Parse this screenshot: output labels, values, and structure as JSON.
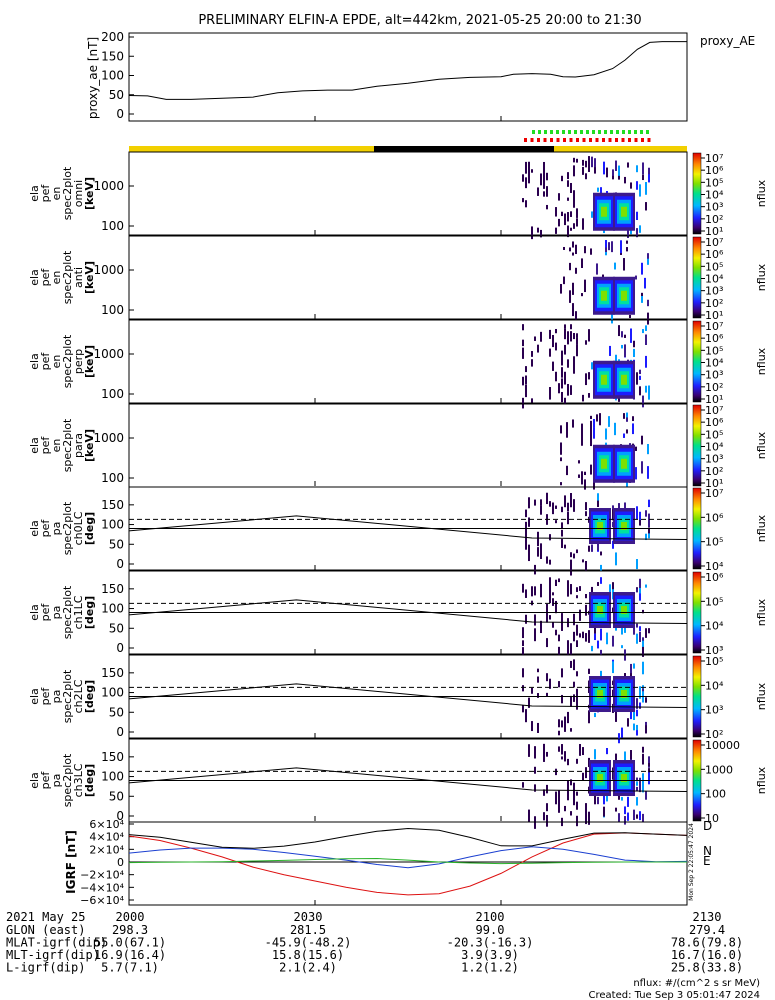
{
  "title": "PRELIMINARY ELFIN-A EPDE, alt=442km, 2021-05-25 20:00 to 21:30",
  "colors": {
    "yellow_bar": "#f2d000",
    "dark_bar": "#000000",
    "green_marks": "#22dd22",
    "red_marks": "#ee0000",
    "bx": "#d11",
    "by": "#1b3fd0",
    "bz": "#2bb32b"
  },
  "chart_data": [
    {
      "type": "line",
      "id": "proxy_ae",
      "ylabel": "proxy_ae [nT]",
      "legend": "proxy_AE",
      "ylim": [
        0,
        200
      ],
      "yticks": [
        "0",
        "50",
        "100",
        "150",
        "200"
      ],
      "x": [
        0,
        3,
        6,
        10,
        15,
        20,
        24,
        28,
        32,
        36,
        40,
        45,
        50,
        55,
        60,
        62,
        65,
        68,
        70,
        72,
        75,
        78,
        80,
        82,
        84,
        86,
        88,
        90
      ],
      "y": [
        48,
        47,
        38,
        38,
        41,
        44,
        55,
        60,
        62,
        62,
        72,
        80,
        90,
        95,
        97,
        103,
        105,
        103,
        97,
        96,
        102,
        118,
        140,
        168,
        186,
        188,
        188,
        188
      ]
    },
    {
      "type": "heatmap",
      "id": "spec_omni",
      "ylabel": [
        "ela",
        "pef",
        "en",
        "spec2plot",
        "omni",
        "[keV]"
      ],
      "colorbar_label": "nflux",
      "colorbar_ticks": [
        "10⁷",
        "10⁶",
        "10⁵",
        "10⁴",
        "10³",
        "10²",
        "10¹"
      ],
      "yticks": [
        "1000",
        "100"
      ]
    },
    {
      "type": "heatmap",
      "id": "spec_anti",
      "ylabel": [
        "ela",
        "pef",
        "en",
        "spec2plot",
        "anti",
        "[keV]"
      ],
      "colorbar_label": "nflux",
      "colorbar_ticks": [
        "10⁷",
        "10⁶",
        "10⁵",
        "10⁴",
        "10³",
        "10²",
        "10¹"
      ],
      "yticks": [
        "1000",
        "100"
      ]
    },
    {
      "type": "heatmap",
      "id": "spec_perp",
      "ylabel": [
        "ela",
        "pef",
        "en",
        "spec2plot",
        "perp",
        "[keV]"
      ],
      "colorbar_label": "nflux",
      "colorbar_ticks": [
        "10⁷",
        "10⁶",
        "10⁵",
        "10⁴",
        "10³",
        "10²",
        "10¹"
      ],
      "yticks": [
        "1000",
        "100"
      ]
    },
    {
      "type": "heatmap",
      "id": "spec_para",
      "ylabel": [
        "ela",
        "pef",
        "en",
        "spec2plot",
        "para",
        "[keV]"
      ],
      "colorbar_label": "nflux",
      "colorbar_ticks": [
        "10⁷",
        "10⁶",
        "10⁵",
        "10⁴",
        "10³",
        "10²",
        "10¹"
      ],
      "yticks": [
        "1000",
        "100"
      ]
    },
    {
      "type": "heatmap",
      "id": "pa_ch0",
      "ylabel": [
        "ela",
        "pef",
        "pa",
        "spec2plot",
        "ch0LC",
        "[deg]"
      ],
      "colorbar_label": "nflux",
      "colorbar_ticks": [
        "10⁷",
        "10⁶",
        "10⁵",
        "10⁴"
      ],
      "yticks": [
        "150",
        "100",
        "50",
        "0"
      ]
    },
    {
      "type": "heatmap",
      "id": "pa_ch1",
      "ylabel": [
        "ela",
        "pef",
        "pa",
        "spec2plot",
        "ch1LC",
        "[deg]"
      ],
      "colorbar_label": "nflux",
      "colorbar_ticks": [
        "10⁶",
        "10⁵",
        "10⁴",
        "10³"
      ],
      "yticks": [
        "150",
        "100",
        "50",
        "0"
      ]
    },
    {
      "type": "heatmap",
      "id": "pa_ch2",
      "ylabel": [
        "ela",
        "pef",
        "pa",
        "spec2plot",
        "ch2LC",
        "[deg]"
      ],
      "colorbar_label": "nflux",
      "colorbar_ticks": [
        "10⁵",
        "10⁴",
        "10³",
        "10²"
      ],
      "yticks": [
        "150",
        "100",
        "50",
        "0"
      ]
    },
    {
      "type": "heatmap",
      "id": "pa_ch3",
      "ylabel": [
        "ela",
        "pef",
        "pa",
        "spec2plot",
        "ch3LC",
        "[deg]"
      ],
      "colorbar_label": "nflux",
      "colorbar_ticks": [
        "10000",
        "1000",
        "100",
        "10"
      ],
      "yticks": [
        "150",
        "100",
        "50",
        "0"
      ]
    },
    {
      "type": "line",
      "id": "igrf",
      "ylabel": "IGRF [nT]",
      "ylim": [
        -60000,
        60000
      ],
      "yticks": [
        "6×10⁴",
        "4×10⁴",
        "2×10⁴",
        "0",
        "−2×10⁴",
        "−4×10⁴",
        "−6×10⁴"
      ],
      "side_labels": [
        "D",
        "N",
        "E"
      ],
      "side_note": "Mon Sep 2 22:05:47 2024",
      "x": [
        0,
        5,
        10,
        15,
        20,
        25,
        30,
        35,
        40,
        45,
        50,
        55,
        60,
        65,
        70,
        75,
        80,
        85,
        90
      ],
      "series": [
        {
          "name": "D",
          "values": [
            41000,
            34000,
            22000,
            8000,
            -8000,
            -20000,
            -30000,
            -40000,
            -48000,
            -52000,
            -50000,
            -38000,
            -18000,
            8000,
            30000,
            44000,
            46000,
            44000,
            42000
          ]
        },
        {
          "name": "N",
          "values": [
            14000,
            19000,
            22000,
            22000,
            20000,
            15000,
            9000,
            3000,
            -4000,
            -9000,
            -3000,
            8000,
            18000,
            24000,
            20000,
            12000,
            3000,
            500,
            1000
          ]
        },
        {
          "name": "E",
          "values": [
            -1000,
            -500,
            0,
            500,
            1500,
            2500,
            4000,
            5000,
            5500,
            3000,
            0,
            -1500,
            -2500,
            -2000,
            -1000,
            -500,
            0,
            0,
            0
          ]
        }
      ]
    }
  ],
  "xaxis": {
    "date_label": "2021 May 25",
    "ticks": [
      "2000",
      "2030",
      "2100",
      "2130"
    ],
    "rows": [
      {
        "label": "GLON (east)",
        "values": [
          "298.3",
          "281.5",
          "99.0",
          "279.4"
        ]
      },
      {
        "label": "MLAT-igrf(dip)",
        "values": [
          "55.0(67.1)",
          "-45.9(-48.2)",
          "-20.3(-16.3)",
          "78.6(79.8)"
        ]
      },
      {
        "label": "MLT-igrf(dip)",
        "values": [
          "16.9(16.4)",
          "15.8(15.6)",
          "3.9(3.9)",
          "16.7(16.0)"
        ]
      },
      {
        "label": "L-igrf(dip)",
        "values": [
          "5.7(7.1)",
          "2.1(2.4)",
          "1.2(1.2)",
          "25.8(33.8)"
        ]
      }
    ]
  },
  "footer": {
    "units": "nflux: #/(cm^2 s sr MeV)",
    "created": "Created: Tue Sep  3 05:01:47 2024"
  }
}
